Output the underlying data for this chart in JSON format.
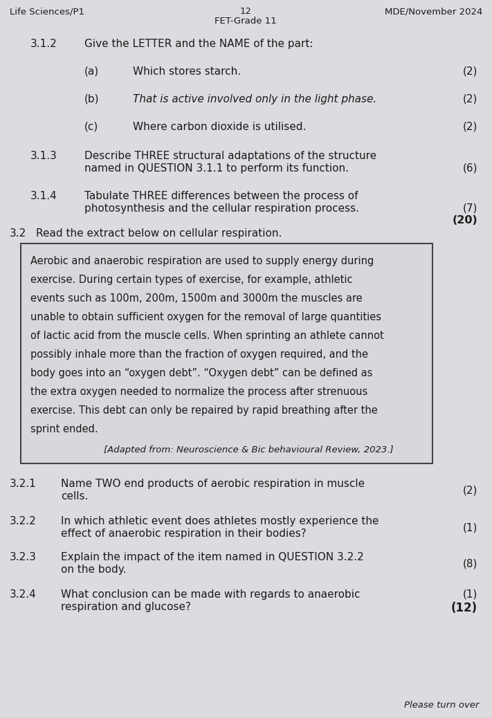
{
  "bg_color": "#dcdce0",
  "text_color": "#1a1a1a",
  "header_left": "Life Sciences/P1",
  "header_center_line1": "12",
  "header_center_line2": "FET-Grade 11",
  "header_right": "MDE/November 2024",
  "footer_text": "Please turn over",
  "section_312_label": "3.1.2",
  "section_312_text": "Give the LETTER and the NAME of the part:",
  "sub_a_label": "(a)",
  "sub_a_text": "Which stores starch.",
  "sub_a_marks": "(2)",
  "sub_b_label": "(b)",
  "sub_b_text": "That is active involved only in the light phase.",
  "sub_b_marks": "(2)",
  "sub_c_label": "(c)",
  "sub_c_text": "Where carbon dioxide is utilised.",
  "sub_c_marks": "(2)",
  "section_313_label": "3.1.3",
  "section_313_line1": "Describe THREE structural adaptations of the structure",
  "section_313_line2": "named in QUESTION 3.1.1 to perform its function.",
  "section_313_marks": "(6)",
  "section_314_label": "3.1.4",
  "section_314_line1": "Tabulate THREE differences between the process of",
  "section_314_line2": "photosynthesis and the cellular respiration process.",
  "section_314_marks1": "(7)",
  "section_314_marks2": "(20)",
  "section_32_label": "3.2",
  "section_32_text": "Read the extract below on cellular respiration.",
  "box_lines": [
    "Aerobic and anaerobic respiration are used to supply energy during",
    "exercise. During certain types of exercise, for example, athletic",
    "events such as 100m, 200m, 1500m and 3000m the muscles are",
    "unable to obtain sufficient oxygen for the removal of large quantities",
    "of lactic acid from the muscle cells. When sprinting an athlete cannot",
    "possibly inhale more than the fraction of oxygen required, and the",
    "body goes into an “oxygen debt”. “Oxygen debt” can be defined as",
    "the extra oxygen needed to normalize the process after strenuous",
    "exercise. This debt can only be repaired by rapid breathing after the",
    "sprint ended."
  ],
  "box_citation": "[Adapted from: Neuroscience & Bic behavioural Review, 2023.]",
  "section_321_label": "3.2.1",
  "section_321_line1": "Name TWO end products of aerobic respiration in muscle",
  "section_321_line2": "cells.",
  "section_321_marks": "(2)",
  "section_322_label": "3.2.2",
  "section_322_line1": "In which athletic event does athletes mostly experience the",
  "section_322_line2": "effect of anaerobic respiration in their bodies?",
  "section_322_marks": "(1)",
  "section_323_label": "3.2.3",
  "section_323_line1": "Explain the impact of the item named in QUESTION 3.2.2",
  "section_323_line2": "on the body.",
  "section_323_marks": "(8)",
  "section_324_label": "3.2.4",
  "section_324_line1": "What conclusion can be made with regards to anaerobic",
  "section_324_line2": "respiration and glucose?",
  "section_324_marks1": "(1)",
  "section_324_marks2": "(12)"
}
